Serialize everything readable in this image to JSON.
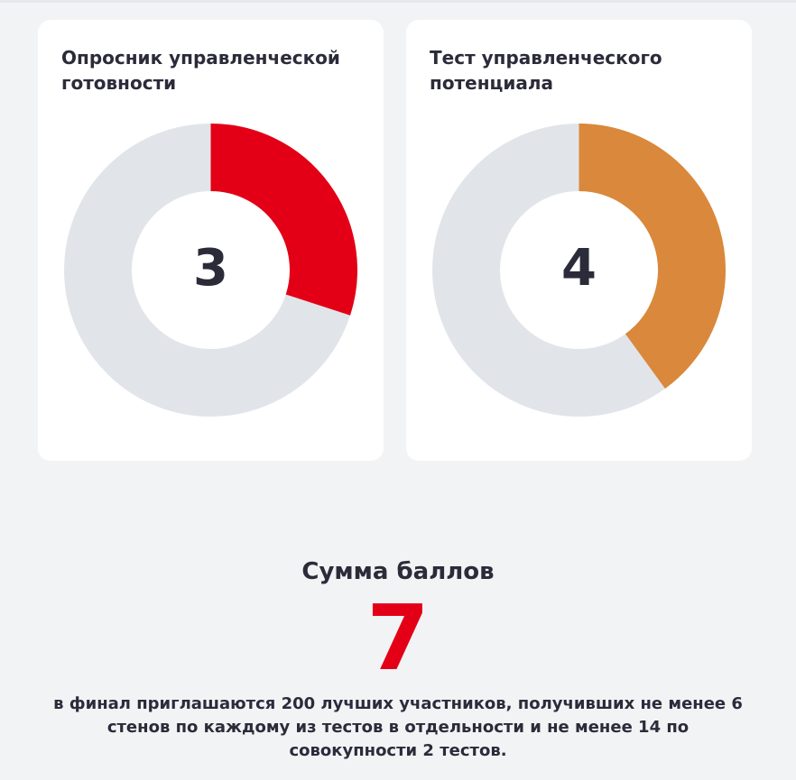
{
  "tests": [
    {
      "title": "Опросник управленческой готовности",
      "score": "3",
      "fraction": 0.3,
      "color": "#e30016",
      "track_color": "#e1e5ea"
    },
    {
      "title": "Тест управленческого потенциала",
      "score": "4",
      "fraction": 0.4,
      "color": "#da883b",
      "track_color": "#e1e5ea"
    }
  ],
  "summary": {
    "title": "Сумма баллов",
    "total": "7",
    "note": "в финал приглашаются 200 лучших участников, получивших не менее 6 стенов по каждому из тестов в отдельности и не менее 14 по совокупности 2 тестов."
  }
}
